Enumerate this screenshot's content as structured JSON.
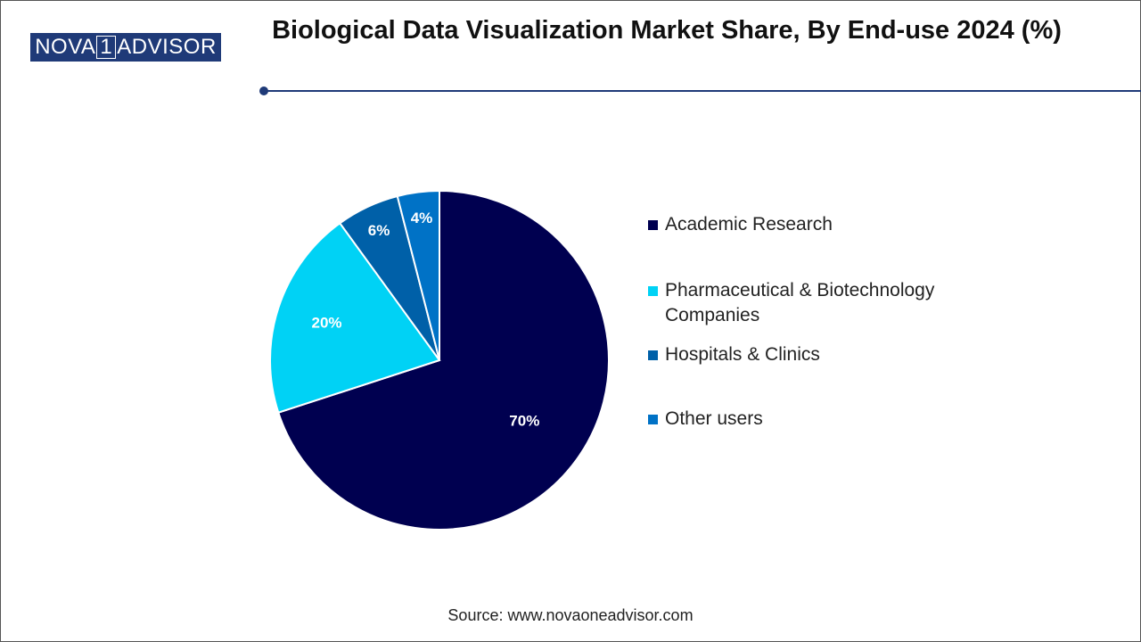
{
  "logo": {
    "left": "NOVA",
    "mark": "1",
    "right": "ADVISOR"
  },
  "chart_data": {
    "type": "pie",
    "title": "Biological Data Visualization Market Share, By End-use 2024 (%)",
    "categories": [
      "Academic Research",
      "Pharmaceutical & Biotechnology Companies",
      "Hospitals & Clinics",
      "Other users"
    ],
    "values": [
      70,
      20,
      6,
      4
    ],
    "value_labels": [
      "70%",
      "20%",
      "6%",
      "4%"
    ],
    "colors": [
      "#000050",
      "#00d2f5",
      "#0060a8",
      "#0072c6"
    ],
    "legend": "right",
    "source": "Source: www.novaoneadvisor.com"
  }
}
